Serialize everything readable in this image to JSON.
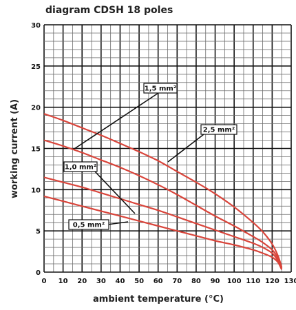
{
  "chart_data": {
    "type": "line",
    "title": "diagram CDSH 18 poles",
    "xlabel": "ambient temperature (°C)",
    "ylabel": "working current (A)",
    "xlim": [
      0,
      130
    ],
    "ylim": [
      0,
      30
    ],
    "x_ticks": [
      "0",
      "10",
      "20",
      "30",
      "40",
      "50",
      "60",
      "70",
      "80",
      "90",
      "100",
      "110",
      "120",
      "130"
    ],
    "y_ticks": [
      "0",
      "5",
      "10",
      "15",
      "20",
      "25",
      "30"
    ],
    "grid": true,
    "line_color": "#d9453b",
    "series": [
      {
        "name": "2,5 mm²",
        "x": [
          0,
          10,
          20,
          30,
          40,
          50,
          60,
          70,
          80,
          90,
          100,
          110,
          115,
          120,
          123,
          125
        ],
        "y": [
          19.2,
          18.4,
          17.5,
          16.6,
          15.6,
          14.6,
          13.5,
          12.2,
          10.9,
          9.5,
          7.9,
          6.0,
          4.9,
          3.4,
          2.0,
          0.6
        ]
      },
      {
        "name": "1,5 mm²",
        "x": [
          0,
          10,
          20,
          30,
          40,
          50,
          60,
          70,
          80,
          90,
          100,
          110,
          115,
          120,
          123,
          125
        ],
        "y": [
          16.0,
          15.3,
          14.5,
          13.6,
          12.7,
          11.7,
          10.6,
          9.4,
          8.1,
          6.8,
          5.6,
          4.3,
          3.6,
          2.7,
          1.7,
          0.5
        ]
      },
      {
        "name": "1,0 mm²",
        "x": [
          0,
          10,
          20,
          30,
          40,
          50,
          60,
          70,
          80,
          90,
          100,
          110,
          115,
          120,
          123,
          125
        ],
        "y": [
          11.5,
          10.9,
          10.3,
          9.6,
          8.9,
          8.2,
          7.5,
          6.7,
          5.9,
          5.1,
          4.3,
          3.5,
          3.0,
          2.3,
          1.4,
          0.4
        ]
      },
      {
        "name": "0,5 mm²",
        "x": [
          0,
          10,
          20,
          30,
          40,
          50,
          60,
          70,
          80,
          90,
          100,
          110,
          115,
          120,
          123,
          125
        ],
        "y": [
          9.2,
          8.6,
          8.0,
          7.4,
          6.8,
          6.2,
          5.6,
          5.0,
          4.4,
          3.8,
          3.3,
          2.7,
          2.3,
          1.8,
          1.2,
          0.3
        ]
      }
    ]
  }
}
